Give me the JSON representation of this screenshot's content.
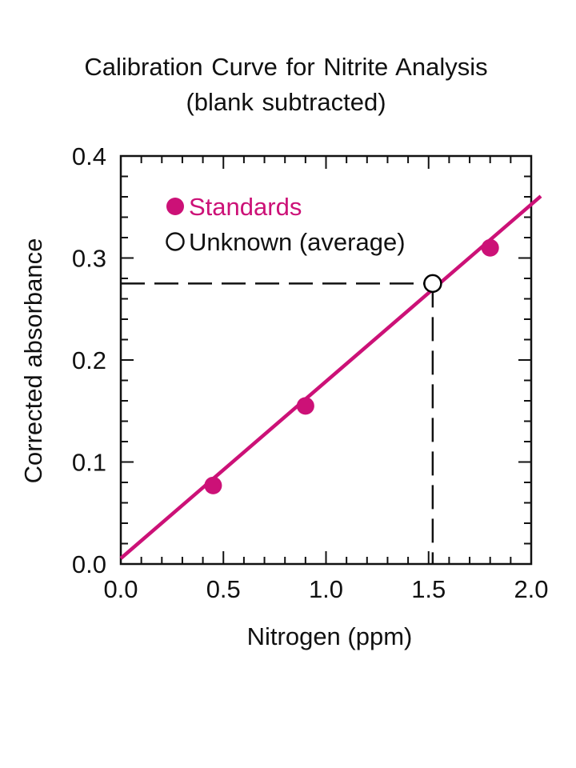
{
  "chart_data": {
    "type": "scatter",
    "title": "Calibration Curve for Nitrite Analysis",
    "subtitle": "(blank subtracted)",
    "xlabel": "Nitrogen (ppm)",
    "ylabel": "Corrected absorbance",
    "xlim": [
      0.0,
      2.0
    ],
    "ylim": [
      0.0,
      0.4
    ],
    "xticks": [
      "0.0",
      "0.5",
      "1.0",
      "1.5",
      "2.0"
    ],
    "yticks": [
      "0.0",
      "0.1",
      "0.2",
      "0.3",
      "0.4"
    ],
    "x_tick_values": [
      0.0,
      0.5,
      1.0,
      1.5,
      2.0
    ],
    "y_tick_values": [
      0.0,
      0.1,
      0.2,
      0.3,
      0.4
    ],
    "minor_tick_step_x": 0.1,
    "minor_tick_step_y": 0.02,
    "grid": false,
    "legend_position": "top-left",
    "series": [
      {
        "name": "Standards",
        "marker": "filled-circle",
        "color": "#cc1177",
        "x": [
          0.45,
          0.9,
          1.8
        ],
        "y": [
          0.077,
          0.155,
          0.31
        ]
      },
      {
        "name": "Unknown (average)",
        "marker": "open-circle",
        "color": "#000000",
        "x": [
          1.52
        ],
        "y": [
          0.275
        ]
      }
    ],
    "fit_line": {
      "color": "#cc1177",
      "slope": 0.1735,
      "intercept": 0.0055
    },
    "dashed_guides": {
      "x": 1.52,
      "y": 0.275
    }
  }
}
